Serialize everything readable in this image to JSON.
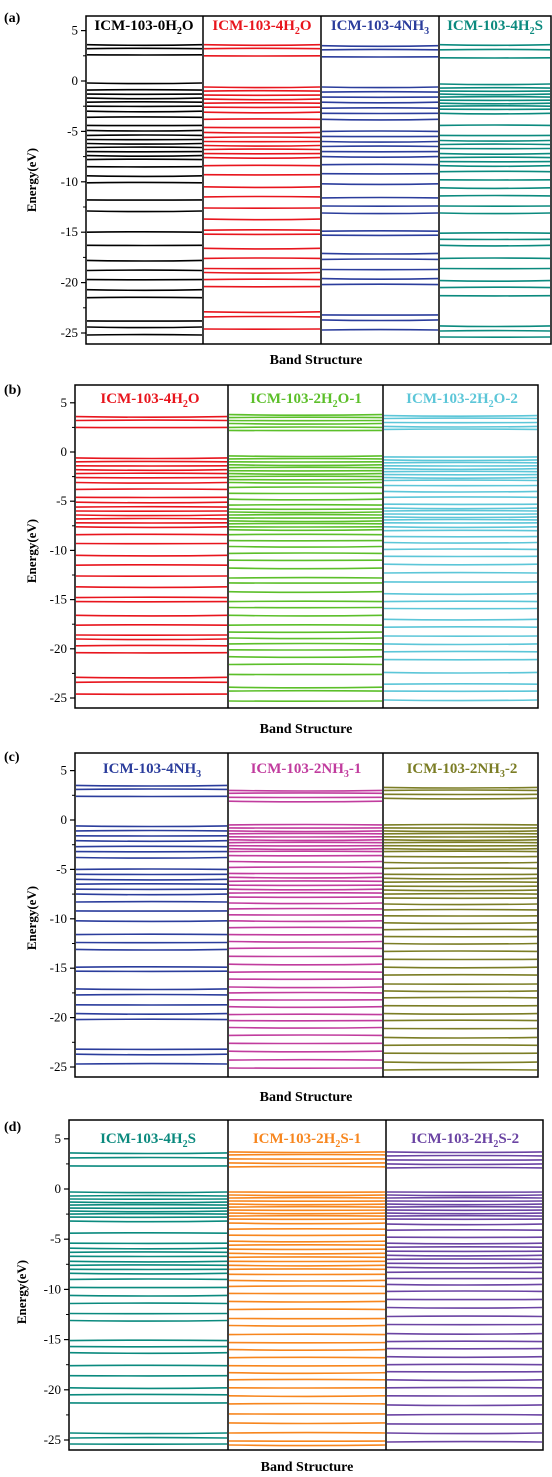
{
  "figure": {
    "panels": [
      {
        "label": "(a)",
        "xlabel": "Band Structure",
        "ylabel": "Energy(eV)",
        "yticks": [
          "5",
          "0",
          "-5",
          "-10",
          "-15",
          "-20",
          "-25"
        ],
        "titles": [
          {
            "main": "ICM-103-0H",
            "sub": "2",
            "tail": "O",
            "color": "#000000"
          },
          {
            "main": "ICM-103-4H",
            "sub": "2",
            "tail": "O",
            "color": "#e8151d"
          },
          {
            "main": "ICM-103-4NH",
            "sub": "3",
            "tail": "",
            "color": "#2b3d9c"
          },
          {
            "main": "ICM-103-4H",
            "sub": "2",
            "tail": "S",
            "color": "#0b8a7e"
          }
        ]
      },
      {
        "label": "(b)",
        "xlabel": "Band Structure",
        "ylabel": "Energy(eV)",
        "yticks": [
          "5",
          "0",
          "-5",
          "-10",
          "-15",
          "-20",
          "-25"
        ],
        "titles": [
          {
            "main": "ICM-103-4H",
            "sub": "2",
            "tail": "O",
            "color": "#e8151d"
          },
          {
            "main": "ICM-103-2H",
            "sub": "2",
            "tail": "O-1",
            "color": "#5cbf2a"
          },
          {
            "main": "ICM-103-2H",
            "sub": "2",
            "tail": "O-2",
            "color": "#5cc6d8"
          }
        ]
      },
      {
        "label": "(c)",
        "xlabel": "Band Structure",
        "ylabel": "Energy(eV)",
        "yticks": [
          "5",
          "0",
          "-5",
          "-10",
          "-15",
          "-20",
          "-25"
        ],
        "titles": [
          {
            "main": "ICM-103-4NH",
            "sub": "3",
            "tail": "",
            "color": "#2b3d9c"
          },
          {
            "main": "ICM-103-2NH",
            "sub": "3",
            "tail": "-1",
            "color": "#c13c9e"
          },
          {
            "main": "ICM-103-2NH",
            "sub": "3",
            "tail": "-2",
            "color": "#7b7d25"
          }
        ]
      },
      {
        "label": "(d)",
        "xlabel": "Band Structure",
        "ylabel": "Energy(eV)",
        "yticks": [
          "5",
          "0",
          "-5",
          "-10",
          "-15",
          "-20",
          "-25"
        ],
        "titles": [
          {
            "main": "ICM-103-4H",
            "sub": "2",
            "tail": "S",
            "color": "#0b8a7e"
          },
          {
            "main": "ICM-103-2H",
            "sub": "2",
            "tail": "S-1",
            "color": "#f7861e"
          },
          {
            "main": "ICM-103-2H",
            "sub": "2",
            "tail": "S-2",
            "color": "#6b44a3"
          }
        ]
      }
    ]
  },
  "chart_data": [
    {
      "type": "line",
      "title": "",
      "xlabel": "Band Structure",
      "ylabel": "Energy(eV)",
      "ylim": [
        -26,
        6
      ],
      "yticks": [
        5,
        0,
        -5,
        -10,
        -15,
        -20,
        -25
      ],
      "series": [
        {
          "name": "ICM-103-0H2O",
          "color": "#000000",
          "levels": [
            3.6,
            3.2,
            2.6,
            -0.2,
            -0.9,
            -1.3,
            -1.7,
            -2.1,
            -2.5,
            -3.0,
            -3.6,
            -4.4,
            -4.9,
            -5.4,
            -5.8,
            -6.2,
            -6.6,
            -7.0,
            -7.4,
            -7.8,
            -8.5,
            -9.4,
            -10.1,
            -11.8,
            -12.9,
            -15.0,
            -16.3,
            -17.8,
            -18.8,
            -19.7,
            -20.7,
            -21.5,
            -23.8,
            -24.4,
            -25.2
          ]
        },
        {
          "name": "ICM-103-4H2O",
          "color": "#e8151d",
          "levels": [
            3.6,
            3.2,
            2.5,
            -0.6,
            -1.0,
            -1.4,
            -1.8,
            -2.2,
            -2.6,
            -3.1,
            -3.8,
            -4.6,
            -5.1,
            -5.6,
            -6.0,
            -6.4,
            -6.8,
            -7.2,
            -7.6,
            -8.4,
            -9.3,
            -10.5,
            -11.5,
            -12.6,
            -13.7,
            -14.8,
            -15.2,
            -16.6,
            -17.6,
            -18.6,
            -19.0,
            -19.7,
            -20.4,
            -22.9,
            -23.4,
            -24.6
          ]
        },
        {
          "name": "ICM-103-4NH3",
          "color": "#2b3d9c",
          "levels": [
            3.5,
            3.1,
            2.4,
            -0.6,
            -1.1,
            -1.6,
            -2.1,
            -2.7,
            -3.2,
            -3.8,
            -5.0,
            -5.5,
            -6.0,
            -6.5,
            -7.0,
            -7.5,
            -8.3,
            -9.2,
            -10.2,
            -11.6,
            -12.4,
            -13.1,
            -14.9,
            -15.3,
            -17.1,
            -17.7,
            -18.7,
            -19.6,
            -20.2,
            -23.2,
            -23.7,
            -24.7
          ]
        },
        {
          "name": "ICM-103-4H2S",
          "color": "#0b8a7e",
          "levels": [
            3.6,
            3.1,
            2.3,
            -0.3,
            -0.7,
            -1.0,
            -1.3,
            -1.6,
            -1.9,
            -2.2,
            -2.5,
            -2.8,
            -3.2,
            -4.4,
            -5.4,
            -5.9,
            -6.3,
            -6.7,
            -7.2,
            -7.6,
            -8.0,
            -8.4,
            -9.0,
            -9.8,
            -10.6,
            -11.4,
            -12.4,
            -13.1,
            -15.1,
            -15.7,
            -16.3,
            -17.6,
            -18.6,
            -19.8,
            -20.5,
            -21.3,
            -24.3,
            -24.8,
            -25.4
          ]
        }
      ]
    },
    {
      "type": "line",
      "title": "",
      "xlabel": "Band Structure",
      "ylabel": "Energy(eV)",
      "ylim": [
        -26,
        6
      ],
      "yticks": [
        5,
        0,
        -5,
        -10,
        -15,
        -20,
        -25
      ],
      "series": [
        {
          "name": "ICM-103-4H2O",
          "color": "#e8151d",
          "levels": [
            3.6,
            3.2,
            2.5,
            -0.6,
            -1.0,
            -1.4,
            -1.8,
            -2.2,
            -2.6,
            -3.1,
            -3.8,
            -4.6,
            -5.1,
            -5.6,
            -6.0,
            -6.4,
            -6.8,
            -7.2,
            -7.6,
            -8.4,
            -9.3,
            -10.5,
            -11.5,
            -12.6,
            -13.7,
            -14.8,
            -15.2,
            -16.6,
            -17.6,
            -18.6,
            -19.0,
            -19.7,
            -20.4,
            -22.9,
            -23.4,
            -24.6
          ]
        },
        {
          "name": "ICM-103-2H2O-1",
          "color": "#5cbf2a",
          "levels": [
            3.8,
            3.5,
            3.2,
            2.9,
            2.5,
            2.2,
            -0.4,
            -0.7,
            -1.0,
            -1.3,
            -1.6,
            -1.9,
            -2.2,
            -2.5,
            -2.8,
            -3.1,
            -3.6,
            -4.2,
            -4.8,
            -5.4,
            -5.8,
            -6.1,
            -6.4,
            -6.7,
            -7.0,
            -7.3,
            -7.6,
            -7.9,
            -8.4,
            -9.0,
            -9.6,
            -10.3,
            -11.0,
            -11.8,
            -12.8,
            -13.3,
            -14.2,
            -15.2,
            -15.8,
            -16.6,
            -17.6,
            -18.3,
            -18.9,
            -19.5,
            -20.1,
            -20.8,
            -21.6,
            -22.6,
            -23.9,
            -24.3,
            -25.3
          ]
        },
        {
          "name": "ICM-103-2H2O-2",
          "color": "#5cc6d8",
          "levels": [
            3.7,
            3.4,
            3.0,
            2.6,
            2.3,
            -0.5,
            -0.8,
            -1.1,
            -1.4,
            -1.7,
            -2.0,
            -2.3,
            -2.6,
            -2.9,
            -3.4,
            -4.0,
            -4.6,
            -5.3,
            -5.7,
            -6.0,
            -6.3,
            -6.6,
            -6.9,
            -7.2,
            -7.6,
            -8.0,
            -8.6,
            -9.2,
            -9.9,
            -10.6,
            -11.4,
            -12.3,
            -13.2,
            -14.4,
            -15.2,
            -15.9,
            -17.0,
            -17.8,
            -18.7,
            -19.5,
            -20.3,
            -21.1,
            -22.4,
            -23.6,
            -24.3,
            -25.2
          ]
        }
      ]
    },
    {
      "type": "line",
      "title": "",
      "xlabel": "Band Structure",
      "ylabel": "Energy(eV)",
      "ylim": [
        -26,
        6
      ],
      "yticks": [
        5,
        0,
        -5,
        -10,
        -15,
        -20,
        -25
      ],
      "series": [
        {
          "name": "ICM-103-4NH3",
          "color": "#2b3d9c",
          "levels": [
            3.5,
            3.1,
            2.4,
            -0.6,
            -1.1,
            -1.6,
            -2.1,
            -2.7,
            -3.2,
            -3.8,
            -5.0,
            -5.5,
            -6.0,
            -6.5,
            -7.0,
            -7.5,
            -8.3,
            -9.2,
            -10.2,
            -11.6,
            -12.4,
            -13.1,
            -14.9,
            -15.3,
            -17.1,
            -17.7,
            -18.7,
            -19.6,
            -20.2,
            -23.2,
            -23.7,
            -24.7
          ]
        },
        {
          "name": "ICM-103-2NH3-1",
          "color": "#c13c9e",
          "levels": [
            3.0,
            2.7,
            2.3,
            1.9,
            -0.5,
            -0.8,
            -1.1,
            -1.4,
            -1.7,
            -2.0,
            -2.3,
            -2.6,
            -2.9,
            -3.2,
            -3.6,
            -4.2,
            -4.8,
            -5.4,
            -5.8,
            -6.2,
            -6.6,
            -7.0,
            -7.4,
            -7.8,
            -8.4,
            -9.0,
            -9.6,
            -10.2,
            -10.9,
            -11.6,
            -12.3,
            -13.0,
            -13.8,
            -14.6,
            -15.4,
            -16.1,
            -16.9,
            -17.5,
            -18.2,
            -18.9,
            -19.7,
            -20.3,
            -21.0,
            -21.8,
            -22.6,
            -23.4,
            -24.3,
            -25.1
          ]
        },
        {
          "name": "ICM-103-2NH3-2",
          "color": "#7b7d25",
          "levels": [
            3.3,
            3.0,
            2.6,
            2.2,
            -0.5,
            -0.8,
            -1.1,
            -1.4,
            -1.7,
            -2.0,
            -2.3,
            -2.6,
            -2.9,
            -3.2,
            -3.7,
            -4.3,
            -4.9,
            -5.5,
            -5.9,
            -6.3,
            -6.7,
            -7.1,
            -7.5,
            -7.9,
            -8.5,
            -9.1,
            -9.7,
            -10.4,
            -11.1,
            -11.8,
            -12.5,
            -13.3,
            -14.1,
            -14.9,
            -15.7,
            -16.6,
            -17.3,
            -18.0,
            -18.8,
            -19.6,
            -20.3,
            -21.1,
            -22.0,
            -22.8,
            -23.6,
            -24.5,
            -25.3
          ]
        }
      ]
    },
    {
      "type": "line",
      "title": "",
      "xlabel": "Band Structure",
      "ylabel": "Energy(eV)",
      "ylim": [
        -26,
        6
      ],
      "yticks": [
        5,
        0,
        -5,
        -10,
        -15,
        -20,
        -25
      ],
      "series": [
        {
          "name": "ICM-103-4H2S",
          "color": "#0b8a7e",
          "levels": [
            3.6,
            3.1,
            2.3,
            -0.3,
            -0.7,
            -1.0,
            -1.3,
            -1.6,
            -1.9,
            -2.2,
            -2.5,
            -2.8,
            -3.2,
            -4.4,
            -5.4,
            -5.9,
            -6.3,
            -6.7,
            -7.2,
            -7.6,
            -8.0,
            -8.4,
            -9.0,
            -9.8,
            -10.6,
            -11.4,
            -12.4,
            -13.1,
            -15.1,
            -15.7,
            -16.3,
            -17.6,
            -18.6,
            -19.8,
            -20.5,
            -21.3,
            -24.3,
            -24.8,
            -25.4
          ]
        },
        {
          "name": "ICM-103-2H2S-1",
          "color": "#f7861e",
          "levels": [
            3.7,
            3.4,
            3.0,
            2.6,
            2.2,
            -0.3,
            -0.6,
            -0.9,
            -1.2,
            -1.5,
            -1.8,
            -2.1,
            -2.4,
            -2.7,
            -3.0,
            -3.4,
            -4.0,
            -4.6,
            -5.2,
            -5.6,
            -6.0,
            -6.4,
            -6.8,
            -7.2,
            -7.6,
            -8.0,
            -8.5,
            -9.1,
            -9.7,
            -10.4,
            -11.2,
            -12.0,
            -12.9,
            -13.6,
            -14.5,
            -15.3,
            -16.0,
            -16.8,
            -17.6,
            -18.3,
            -19.0,
            -19.8,
            -20.6,
            -21.4,
            -22.4,
            -23.3,
            -24.3,
            -25.1,
            -25.5
          ]
        },
        {
          "name": "ICM-103-2H2S-2",
          "color": "#6b44a3",
          "levels": [
            3.7,
            3.3,
            2.9,
            2.5,
            2.1,
            -0.3,
            -0.6,
            -0.9,
            -1.2,
            -1.5,
            -1.8,
            -2.1,
            -2.4,
            -2.7,
            -3.0,
            -3.5,
            -4.1,
            -4.8,
            -5.4,
            -5.8,
            -6.2,
            -6.6,
            -7.0,
            -7.4,
            -7.8,
            -8.3,
            -8.9,
            -9.5,
            -10.2,
            -11.0,
            -11.8,
            -12.7,
            -13.5,
            -14.4,
            -15.2,
            -15.9,
            -16.7,
            -17.5,
            -18.2,
            -19.0,
            -19.8,
            -20.6,
            -21.5,
            -22.5,
            -23.4,
            -24.3,
            -25.2
          ]
        }
      ]
    }
  ]
}
